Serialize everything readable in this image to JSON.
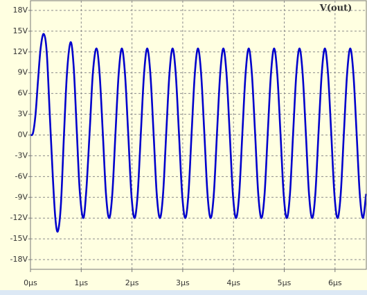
{
  "chart_data": {
    "type": "line",
    "x": [
      0,
      0.05,
      0.1,
      0.15,
      0.2,
      0.26,
      0.32,
      0.38,
      0.44,
      0.49,
      0.54,
      0.6,
      0.66,
      0.72,
      0.79,
      0.85,
      0.91,
      0.97,
      1.04,
      1.1,
      1.17,
      1.23,
      1.3,
      1.3625,
      1.425,
      1.4875,
      1.55,
      1.6125,
      1.675,
      1.7375,
      1.8,
      1.8625,
      1.925,
      1.9875,
      2.05,
      2.1125,
      2.175,
      2.2375,
      2.3,
      2.3625,
      2.425,
      2.4875,
      2.55,
      2.6125,
      2.675,
      2.7375,
      2.8,
      2.8625,
      2.925,
      2.9875,
      3.05,
      3.1125,
      3.175,
      3.2375,
      3.3,
      3.3625,
      3.425,
      3.4875,
      3.55,
      3.6125,
      3.675,
      3.7375,
      3.8,
      3.8625,
      3.925,
      3.9875,
      4.05,
      4.1125,
      4.175,
      4.2375,
      4.3,
      4.3625,
      4.425,
      4.4875,
      4.55,
      4.6125,
      4.675,
      4.7375,
      4.8,
      4.8625,
      4.925,
      4.9875,
      5.05,
      5.1125,
      5.175,
      5.2375,
      5.3,
      5.3625,
      5.425,
      5.4875,
      5.55,
      5.6125,
      5.675,
      5.7375,
      5.8,
      5.8625,
      5.925,
      5.9875,
      6.05,
      6.1125,
      6.175,
      6.2375,
      6.3,
      6.3625,
      6.425,
      6.4875,
      6.55,
      6.6125
    ],
    "series": [
      {
        "name": "V(out)",
        "color": "#0000cc",
        "values": [
          0,
          0.3,
          3,
          8,
          12.5,
          14.6,
          12,
          3,
          -6,
          -12,
          -13.9,
          -10,
          0,
          9,
          13.4,
          10,
          1,
          -8,
          -12,
          -8,
          1,
          9,
          12.5,
          8.8,
          0.3,
          -8.5,
          -12,
          -8.5,
          0.3,
          8.8,
          12.5,
          8.8,
          0.3,
          -8.5,
          -12,
          -8.5,
          0.3,
          8.8,
          12.5,
          8.8,
          0.3,
          -8.5,
          -12,
          -8.5,
          0.3,
          8.8,
          12.5,
          8.8,
          0.3,
          -8.5,
          -12,
          -8.5,
          0.3,
          8.8,
          12.5,
          8.8,
          0.3,
          -8.5,
          -12,
          -8.5,
          0.3,
          8.8,
          12.5,
          8.8,
          0.3,
          -8.5,
          -12,
          -8.5,
          0.3,
          8.8,
          12.5,
          8.8,
          0.3,
          -8.5,
          -12,
          -8.5,
          0.3,
          8.8,
          12.5,
          8.8,
          0.3,
          -8.5,
          -12,
          -8.5,
          0.3,
          8.8,
          12.5,
          8.8,
          0.3,
          -8.5,
          -12,
          -8.5,
          0.3,
          8.8,
          12.5,
          8.8,
          0.3,
          -8.5,
          -12,
          -8.5,
          0.3,
          8.8,
          12.5,
          8.8,
          0.3,
          -8.5,
          -12,
          -8.5
        ]
      }
    ],
    "xlim": [
      0,
      6.63
    ],
    "ylim": [
      -19.4,
      19.4
    ],
    "xticks": [
      {
        "value": 0,
        "label": "0µs"
      },
      {
        "value": 1,
        "label": "1µs"
      },
      {
        "value": 2,
        "label": "2µs"
      },
      {
        "value": 3,
        "label": "3µs"
      },
      {
        "value": 4,
        "label": "4µs"
      },
      {
        "value": 5,
        "label": "5µs"
      },
      {
        "value": 6,
        "label": "6µs"
      }
    ],
    "yticks": [
      {
        "value": -18,
        "label": "-18V"
      },
      {
        "value": -15,
        "label": "-15V"
      },
      {
        "value": -12,
        "label": "-12V"
      },
      {
        "value": -9,
        "label": "-9V"
      },
      {
        "value": -6,
        "label": "-6V"
      },
      {
        "value": -3,
        "label": "-3V"
      },
      {
        "value": 0,
        "label": "0V"
      },
      {
        "value": 3,
        "label": "3V"
      },
      {
        "value": 6,
        "label": "6V"
      },
      {
        "value": 9,
        "label": "9V"
      },
      {
        "value": 12,
        "label": "12V"
      },
      {
        "value": 15,
        "label": "15V"
      },
      {
        "value": 18,
        "label": "18V"
      }
    ],
    "grid": true
  }
}
